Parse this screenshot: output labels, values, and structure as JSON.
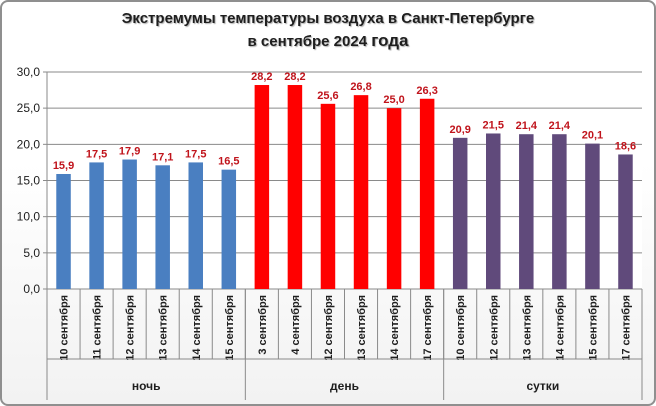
{
  "chart_data": {
    "type": "bar",
    "title_line1": "Экстремумы температуры воздуха в Санкт-Петербурге",
    "title_line2_prefix": "в сентябре 2024 ",
    "title_line2_suffix": "года",
    "ylim": [
      0,
      30
    ],
    "yticks": [
      "0,0",
      "5,0",
      "10,0",
      "15,0",
      "20,0",
      "25,0",
      "30,0"
    ],
    "grid": true,
    "groups": [
      {
        "name": "ночь",
        "color": "#4a7fc1",
        "categories": [
          "10 сентября",
          "11 сентября",
          "12 сентября",
          "13 сентября",
          "14 сентября",
          "15 сентября"
        ],
        "values": [
          15.9,
          17.5,
          17.9,
          17.1,
          17.5,
          16.5
        ],
        "labels": [
          "15,9",
          "17,5",
          "17,9",
          "17,1",
          "17,5",
          "16,5"
        ]
      },
      {
        "name": "день",
        "color": "#ff0000",
        "categories": [
          "3 сентября",
          "4 сентября",
          "12 сентября",
          "13 сентября",
          "14 сентября",
          "17 сентября"
        ],
        "values": [
          28.2,
          28.2,
          25.6,
          26.8,
          25.0,
          26.3
        ],
        "labels": [
          "28,2",
          "28,2",
          "25,6",
          "26,8",
          "25,0",
          "26,3"
        ]
      },
      {
        "name": "сутки",
        "color": "#604a7b",
        "categories": [
          "10 сентября",
          "12 сентября",
          "13 сентября",
          "14 сентября",
          "15 сентября",
          "17 сентября"
        ],
        "values": [
          20.9,
          21.5,
          21.4,
          21.4,
          20.1,
          18.6
        ],
        "labels": [
          "20,9",
          "21,5",
          "21,4",
          "21,4",
          "20,1",
          "18,6"
        ]
      }
    ]
  }
}
